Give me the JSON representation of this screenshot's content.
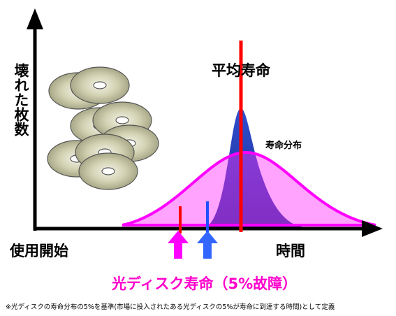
{
  "title": "平均寿命",
  "y_axis_label": "壊れた枚数",
  "distribution_label": "寿命分布",
  "x_start_label": "使用開始",
  "x_axis_label": "時間",
  "lifetime_label": "光ディスク寿命（5%故障）",
  "footnote": "※光ディスクの寿命分布の5%を基準(市場に投入されたある光ディスクの5%が寿命に到達する時間)として定義"
}
